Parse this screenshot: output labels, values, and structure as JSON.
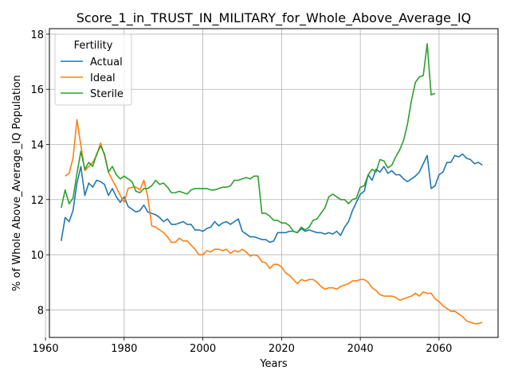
{
  "chart_data": {
    "type": "line",
    "title": "Score_1_in_TRUST_IN_MILITARY_for_Whole_Above_Average_IQ",
    "xlabel": "Years",
    "ylabel": "% of Whole Above_Average_IQ Population",
    "xlim": [
      1961,
      2075
    ],
    "ylim": [
      7.0,
      18.2
    ],
    "xticks": [
      1960,
      1980,
      2000,
      2020,
      2040,
      2060
    ],
    "yticks": [
      8,
      10,
      12,
      14,
      16,
      18
    ],
    "grid": true,
    "legend": {
      "title": "Fertility",
      "placement": "top-left"
    },
    "series": [
      {
        "name": "Actual",
        "color": "#1f77b4",
        "points": [
          [
            1964,
            10.5
          ],
          [
            1965,
            11.35
          ],
          [
            1966,
            11.2
          ],
          [
            1967,
            11.6
          ],
          [
            1968,
            12.6
          ],
          [
            1969,
            13.2
          ],
          [
            1970,
            12.15
          ],
          [
            1971,
            12.6
          ],
          [
            1972,
            12.45
          ],
          [
            1973,
            12.7
          ],
          [
            1974,
            12.65
          ],
          [
            1975,
            12.55
          ],
          [
            1976,
            12.15
          ],
          [
            1977,
            12.4
          ],
          [
            1978,
            12.1
          ],
          [
            1979,
            11.9
          ],
          [
            1980,
            12.1
          ],
          [
            1981,
            11.75
          ],
          [
            1982,
            11.65
          ],
          [
            1983,
            11.55
          ],
          [
            1984,
            11.6
          ],
          [
            1985,
            11.8
          ],
          [
            1986,
            11.55
          ],
          [
            1987,
            11.5
          ],
          [
            1988,
            11.45
          ],
          [
            1989,
            11.35
          ],
          [
            1990,
            11.2
          ],
          [
            1991,
            11.3
          ],
          [
            1992,
            11.1
          ],
          [
            1993,
            11.1
          ],
          [
            1994,
            11.15
          ],
          [
            1995,
            11.2
          ],
          [
            1996,
            11.1
          ],
          [
            1997,
            11.1
          ],
          [
            1998,
            10.9
          ],
          [
            1999,
            10.9
          ],
          [
            2000,
            10.85
          ],
          [
            2001,
            10.95
          ],
          [
            2002,
            11.0
          ],
          [
            2003,
            11.2
          ],
          [
            2004,
            11.05
          ],
          [
            2005,
            11.15
          ],
          [
            2006,
            11.2
          ],
          [
            2007,
            11.1
          ],
          [
            2008,
            11.2
          ],
          [
            2009,
            11.3
          ],
          [
            2010,
            10.85
          ],
          [
            2011,
            10.75
          ],
          [
            2012,
            10.65
          ],
          [
            2013,
            10.65
          ],
          [
            2014,
            10.6
          ],
          [
            2015,
            10.55
          ],
          [
            2016,
            10.55
          ],
          [
            2017,
            10.45
          ],
          [
            2018,
            10.5
          ],
          [
            2019,
            10.8
          ],
          [
            2020,
            10.8
          ],
          [
            2021,
            10.8
          ],
          [
            2022,
            10.85
          ],
          [
            2023,
            10.85
          ],
          [
            2024,
            10.8
          ],
          [
            2025,
            10.95
          ],
          [
            2026,
            10.85
          ],
          [
            2027,
            10.9
          ],
          [
            2028,
            10.85
          ],
          [
            2029,
            10.8
          ],
          [
            2030,
            10.8
          ],
          [
            2031,
            10.75
          ],
          [
            2032,
            10.8
          ],
          [
            2033,
            10.75
          ],
          [
            2034,
            10.85
          ],
          [
            2035,
            10.7
          ],
          [
            2036,
            11.0
          ],
          [
            2037,
            11.2
          ],
          [
            2038,
            11.6
          ],
          [
            2039,
            11.9
          ],
          [
            2040,
            12.2
          ],
          [
            2041,
            12.3
          ],
          [
            2042,
            12.9
          ],
          [
            2043,
            12.7
          ],
          [
            2044,
            13.1
          ],
          [
            2045,
            13.0
          ],
          [
            2046,
            13.2
          ],
          [
            2047,
            12.95
          ],
          [
            2048,
            13.05
          ],
          [
            2049,
            12.9
          ],
          [
            2050,
            12.9
          ],
          [
            2051,
            12.75
          ],
          [
            2052,
            12.65
          ],
          [
            2053,
            12.75
          ],
          [
            2054,
            12.85
          ],
          [
            2055,
            13.0
          ],
          [
            2056,
            13.3
          ],
          [
            2057,
            13.6
          ],
          [
            2058,
            12.4
          ],
          [
            2059,
            12.5
          ],
          [
            2060,
            12.9
          ],
          [
            2061,
            13.0
          ],
          [
            2062,
            13.35
          ],
          [
            2063,
            13.35
          ],
          [
            2064,
            13.6
          ],
          [
            2065,
            13.55
          ],
          [
            2066,
            13.65
          ],
          [
            2067,
            13.5
          ],
          [
            2068,
            13.45
          ],
          [
            2069,
            13.3
          ],
          [
            2070,
            13.35
          ],
          [
            2071,
            13.25
          ]
        ]
      },
      {
        "name": "Ideal",
        "color": "#ff7f0e",
        "points": [
          [
            1965,
            12.85
          ],
          [
            1966,
            12.95
          ],
          [
            1967,
            13.5
          ],
          [
            1968,
            14.9
          ],
          [
            1969,
            13.95
          ],
          [
            1970,
            13.05
          ],
          [
            1971,
            13.2
          ],
          [
            1972,
            13.35
          ],
          [
            1973,
            13.6
          ],
          [
            1974,
            14.05
          ],
          [
            1975,
            13.6
          ],
          [
            1976,
            13.0
          ],
          [
            1977,
            12.7
          ],
          [
            1978,
            12.45
          ],
          [
            1979,
            12.15
          ],
          [
            1980,
            11.9
          ],
          [
            1981,
            12.4
          ],
          [
            1982,
            12.45
          ],
          [
            1983,
            12.45
          ],
          [
            1984,
            12.35
          ],
          [
            1985,
            12.7
          ],
          [
            1986,
            12.1
          ],
          [
            1987,
            11.05
          ],
          [
            1988,
            11.0
          ],
          [
            1989,
            10.9
          ],
          [
            1990,
            10.8
          ],
          [
            1991,
            10.65
          ],
          [
            1992,
            10.45
          ],
          [
            1993,
            10.45
          ],
          [
            1994,
            10.6
          ],
          [
            1995,
            10.5
          ],
          [
            1996,
            10.5
          ],
          [
            1997,
            10.35
          ],
          [
            1998,
            10.2
          ],
          [
            1999,
            10.0
          ],
          [
            2000,
            10.0
          ],
          [
            2001,
            10.15
          ],
          [
            2002,
            10.1
          ],
          [
            2003,
            10.2
          ],
          [
            2004,
            10.2
          ],
          [
            2005,
            10.15
          ],
          [
            2006,
            10.2
          ],
          [
            2007,
            10.05
          ],
          [
            2008,
            10.15
          ],
          [
            2009,
            10.1
          ],
          [
            2010,
            10.2
          ],
          [
            2011,
            10.1
          ],
          [
            2012,
            9.95
          ],
          [
            2013,
            10.0
          ],
          [
            2014,
            9.95
          ],
          [
            2015,
            9.75
          ],
          [
            2016,
            9.7
          ],
          [
            2017,
            9.5
          ],
          [
            2018,
            9.65
          ],
          [
            2019,
            9.65
          ],
          [
            2020,
            9.55
          ],
          [
            2021,
            9.35
          ],
          [
            2022,
            9.25
          ],
          [
            2023,
            9.1
          ],
          [
            2024,
            8.95
          ],
          [
            2025,
            9.1
          ],
          [
            2026,
            9.05
          ],
          [
            2027,
            9.1
          ],
          [
            2028,
            9.1
          ],
          [
            2029,
            9.0
          ],
          [
            2030,
            8.85
          ],
          [
            2031,
            8.75
          ],
          [
            2032,
            8.8
          ],
          [
            2033,
            8.8
          ],
          [
            2034,
            8.75
          ],
          [
            2035,
            8.85
          ],
          [
            2036,
            8.9
          ],
          [
            2037,
            8.95
          ],
          [
            2038,
            9.05
          ],
          [
            2039,
            9.05
          ],
          [
            2040,
            9.1
          ],
          [
            2041,
            9.1
          ],
          [
            2042,
            9.0
          ],
          [
            2043,
            8.8
          ],
          [
            2044,
            8.7
          ],
          [
            2045,
            8.55
          ],
          [
            2046,
            8.5
          ],
          [
            2047,
            8.5
          ],
          [
            2048,
            8.5
          ],
          [
            2049,
            8.45
          ],
          [
            2050,
            8.35
          ],
          [
            2051,
            8.4
          ],
          [
            2052,
            8.45
          ],
          [
            2053,
            8.5
          ],
          [
            2054,
            8.6
          ],
          [
            2055,
            8.5
          ],
          [
            2056,
            8.65
          ],
          [
            2057,
            8.6
          ],
          [
            2058,
            8.6
          ],
          [
            2059,
            8.4
          ],
          [
            2060,
            8.3
          ],
          [
            2061,
            8.15
          ],
          [
            2062,
            8.05
          ],
          [
            2063,
            7.95
          ],
          [
            2064,
            7.95
          ],
          [
            2065,
            7.85
          ],
          [
            2066,
            7.75
          ],
          [
            2067,
            7.6
          ],
          [
            2068,
            7.55
          ],
          [
            2069,
            7.5
          ],
          [
            2070,
            7.5
          ],
          [
            2071,
            7.55
          ]
        ]
      },
      {
        "name": "Sterile",
        "color": "#2ca02c",
        "points": [
          [
            1964,
            11.7
          ],
          [
            1965,
            12.35
          ],
          [
            1966,
            11.85
          ],
          [
            1967,
            12.05
          ],
          [
            1968,
            12.95
          ],
          [
            1969,
            13.75
          ],
          [
            1970,
            13.1
          ],
          [
            1971,
            13.35
          ],
          [
            1972,
            13.2
          ],
          [
            1973,
            13.65
          ],
          [
            1974,
            13.95
          ],
          [
            1975,
            13.65
          ],
          [
            1976,
            13.0
          ],
          [
            1977,
            13.2
          ],
          [
            1978,
            12.9
          ],
          [
            1979,
            12.75
          ],
          [
            1980,
            12.85
          ],
          [
            1981,
            12.75
          ],
          [
            1982,
            12.65
          ],
          [
            1983,
            12.3
          ],
          [
            1984,
            12.25
          ],
          [
            1985,
            12.4
          ],
          [
            1986,
            12.4
          ],
          [
            1987,
            12.5
          ],
          [
            1988,
            12.7
          ],
          [
            1989,
            12.55
          ],
          [
            1990,
            12.6
          ],
          [
            1991,
            12.45
          ],
          [
            1992,
            12.25
          ],
          [
            1993,
            12.25
          ],
          [
            1994,
            12.3
          ],
          [
            1995,
            12.25
          ],
          [
            1996,
            12.2
          ],
          [
            1997,
            12.35
          ],
          [
            1998,
            12.4
          ],
          [
            1999,
            12.4
          ],
          [
            2000,
            12.4
          ],
          [
            2001,
            12.4
          ],
          [
            2002,
            12.35
          ],
          [
            2003,
            12.35
          ],
          [
            2004,
            12.4
          ],
          [
            2005,
            12.45
          ],
          [
            2006,
            12.45
          ],
          [
            2007,
            12.5
          ],
          [
            2008,
            12.7
          ],
          [
            2009,
            12.7
          ],
          [
            2010,
            12.75
          ],
          [
            2011,
            12.8
          ],
          [
            2012,
            12.75
          ],
          [
            2013,
            12.85
          ],
          [
            2014,
            12.85
          ],
          [
            2015,
            11.5
          ],
          [
            2016,
            11.5
          ],
          [
            2017,
            11.4
          ],
          [
            2018,
            11.25
          ],
          [
            2019,
            11.25
          ],
          [
            2020,
            11.15
          ],
          [
            2021,
            11.15
          ],
          [
            2022,
            11.05
          ],
          [
            2023,
            10.85
          ],
          [
            2024,
            10.8
          ],
          [
            2025,
            11.0
          ],
          [
            2026,
            10.9
          ],
          [
            2027,
            11.0
          ],
          [
            2028,
            11.25
          ],
          [
            2029,
            11.3
          ],
          [
            2030,
            11.5
          ],
          [
            2031,
            11.7
          ],
          [
            2032,
            12.1
          ],
          [
            2033,
            12.2
          ],
          [
            2034,
            12.1
          ],
          [
            2035,
            12.0
          ],
          [
            2036,
            12.0
          ],
          [
            2037,
            11.85
          ],
          [
            2038,
            12.0
          ],
          [
            2039,
            12.05
          ],
          [
            2040,
            12.45
          ],
          [
            2041,
            12.5
          ],
          [
            2042,
            12.9
          ],
          [
            2043,
            13.1
          ],
          [
            2044,
            13.0
          ],
          [
            2045,
            13.45
          ],
          [
            2046,
            13.4
          ],
          [
            2047,
            13.15
          ],
          [
            2048,
            13.25
          ],
          [
            2049,
            13.55
          ],
          [
            2050,
            13.8
          ],
          [
            2051,
            14.15
          ],
          [
            2052,
            14.75
          ],
          [
            2053,
            15.6
          ],
          [
            2054,
            16.25
          ],
          [
            2055,
            16.45
          ],
          [
            2056,
            16.5
          ],
          [
            2057,
            17.65
          ],
          [
            2058,
            15.8
          ],
          [
            2059,
            15.85
          ]
        ]
      }
    ]
  }
}
